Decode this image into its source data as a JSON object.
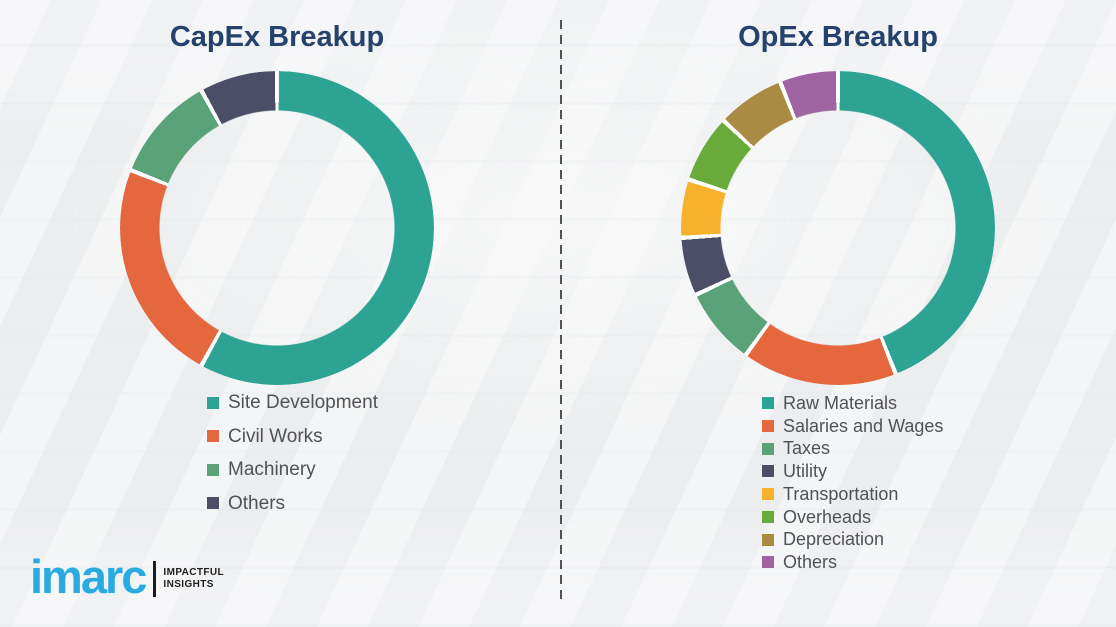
{
  "colors": {
    "background": "#F0F1F2",
    "title_navy": "#24426B",
    "legend_text_gray": "#515255",
    "segment_separator": "#FFFFFF",
    "divider_gray": "#515254",
    "logo_cyan": "#29ABE2",
    "logo_black": "#1E1E1E"
  },
  "chart_data": [
    {
      "type": "pie",
      "donut": true,
      "title": "CapEx Breakup",
      "start_angle_deg": 0,
      "direction": "clockwise",
      "values_note": "percent shares estimated from arc angles; chart displays no numeric labels",
      "legend_position": "below-left",
      "segments": [
        {
          "label": "Site Development",
          "value": 58,
          "color": "#2DA493"
        },
        {
          "label": "Civil Works",
          "value": 23,
          "color": "#E4673E"
        },
        {
          "label": "Machinery",
          "value": 11,
          "color": "#5AA378"
        },
        {
          "label": "Others",
          "value": 8,
          "color": "#4B4E66"
        }
      ]
    },
    {
      "type": "pie",
      "donut": true,
      "title": "OpEx Breakup",
      "start_angle_deg": 0,
      "direction": "clockwise",
      "values_note": "percent shares estimated from arc angles; chart displays no numeric labels",
      "legend_position": "below-left",
      "segments": [
        {
          "label": "Raw Materials",
          "value": 44,
          "color": "#2DA493"
        },
        {
          "label": "Salaries and Wages",
          "value": 16,
          "color": "#E4673E"
        },
        {
          "label": "Taxes",
          "value": 8,
          "color": "#5AA378"
        },
        {
          "label": "Utility",
          "value": 6,
          "color": "#4B4E66"
        },
        {
          "label": "Transportation",
          "value": 6,
          "color": "#F6B12D"
        },
        {
          "label": "Overheads",
          "value": 7,
          "color": "#68AB3A"
        },
        {
          "label": "Depreciation",
          "value": 7,
          "color": "#A98B44"
        },
        {
          "label": "Others",
          "value": 6,
          "color": "#A164A3"
        }
      ]
    }
  ],
  "branding": {
    "logo_text": "imarc",
    "tagline_line1": "IMPACTFUL",
    "tagline_line2": "INSIGHTS"
  }
}
